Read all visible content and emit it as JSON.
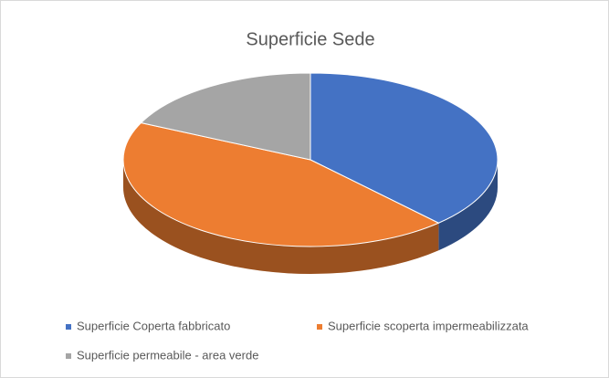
{
  "chart_data": {
    "type": "pie",
    "title": "Superficie Sede",
    "labels": [
      "Superficie Coperta fabbricato",
      "Superficie scoperta impermeabilizzata",
      "Superficie permeabile - area verde"
    ],
    "values": [
      38,
      44,
      18
    ],
    "colors": [
      "#4472c4",
      "#ed7d31",
      "#a5a5a5"
    ],
    "legend": "bottom"
  }
}
